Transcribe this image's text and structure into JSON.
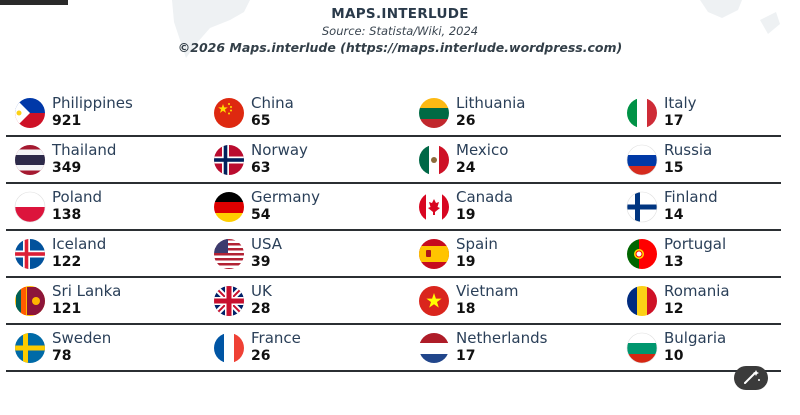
{
  "header": {
    "title": "MAPS.INTERLUDE",
    "source": "Source: Statista/Wiki, 2024",
    "copyright": "©2026 Maps.interlude (https://maps.interlude.wordpress.com)"
  },
  "rows": [
    [
      {
        "name": "Philippines",
        "count": "921",
        "flag": "philippines"
      },
      {
        "name": "China",
        "count": "65",
        "flag": "china"
      },
      {
        "name": "Lithuania",
        "count": "26",
        "flag": "lithuania"
      },
      {
        "name": "Italy",
        "count": "17",
        "flag": "italy"
      }
    ],
    [
      {
        "name": "Thailand",
        "count": "349",
        "flag": "thailand"
      },
      {
        "name": "Norway",
        "count": "63",
        "flag": "norway"
      },
      {
        "name": "Mexico",
        "count": "24",
        "flag": "mexico"
      },
      {
        "name": "Russia",
        "count": "15",
        "flag": "russia"
      }
    ],
    [
      {
        "name": "Poland",
        "count": "138",
        "flag": "poland"
      },
      {
        "name": "Germany",
        "count": "54",
        "flag": "germany"
      },
      {
        "name": "Canada",
        "count": "19",
        "flag": "canada"
      },
      {
        "name": "Finland",
        "count": "14",
        "flag": "finland"
      }
    ],
    [
      {
        "name": "Iceland",
        "count": "122",
        "flag": "iceland"
      },
      {
        "name": "USA",
        "count": "39",
        "flag": "usa"
      },
      {
        "name": "Spain",
        "count": "19",
        "flag": "spain"
      },
      {
        "name": "Portugal",
        "count": "13",
        "flag": "portugal"
      }
    ],
    [
      {
        "name": "Sri Lanka",
        "count": "121",
        "flag": "sri-lanka"
      },
      {
        "name": "UK",
        "count": "28",
        "flag": "uk"
      },
      {
        "name": "Vietnam",
        "count": "18",
        "flag": "vietnam"
      },
      {
        "name": "Romania",
        "count": "12",
        "flag": "romania"
      }
    ],
    [
      {
        "name": "Sweden",
        "count": "78",
        "flag": "sweden"
      },
      {
        "name": "France",
        "count": "26",
        "flag": "france"
      },
      {
        "name": "Netherlands",
        "count": "17",
        "flag": "netherlands"
      },
      {
        "name": "Bulgaria",
        "count": "10",
        "flag": "bulgaria"
      }
    ]
  ],
  "icons": {
    "edit": "magic-wand-icon"
  }
}
